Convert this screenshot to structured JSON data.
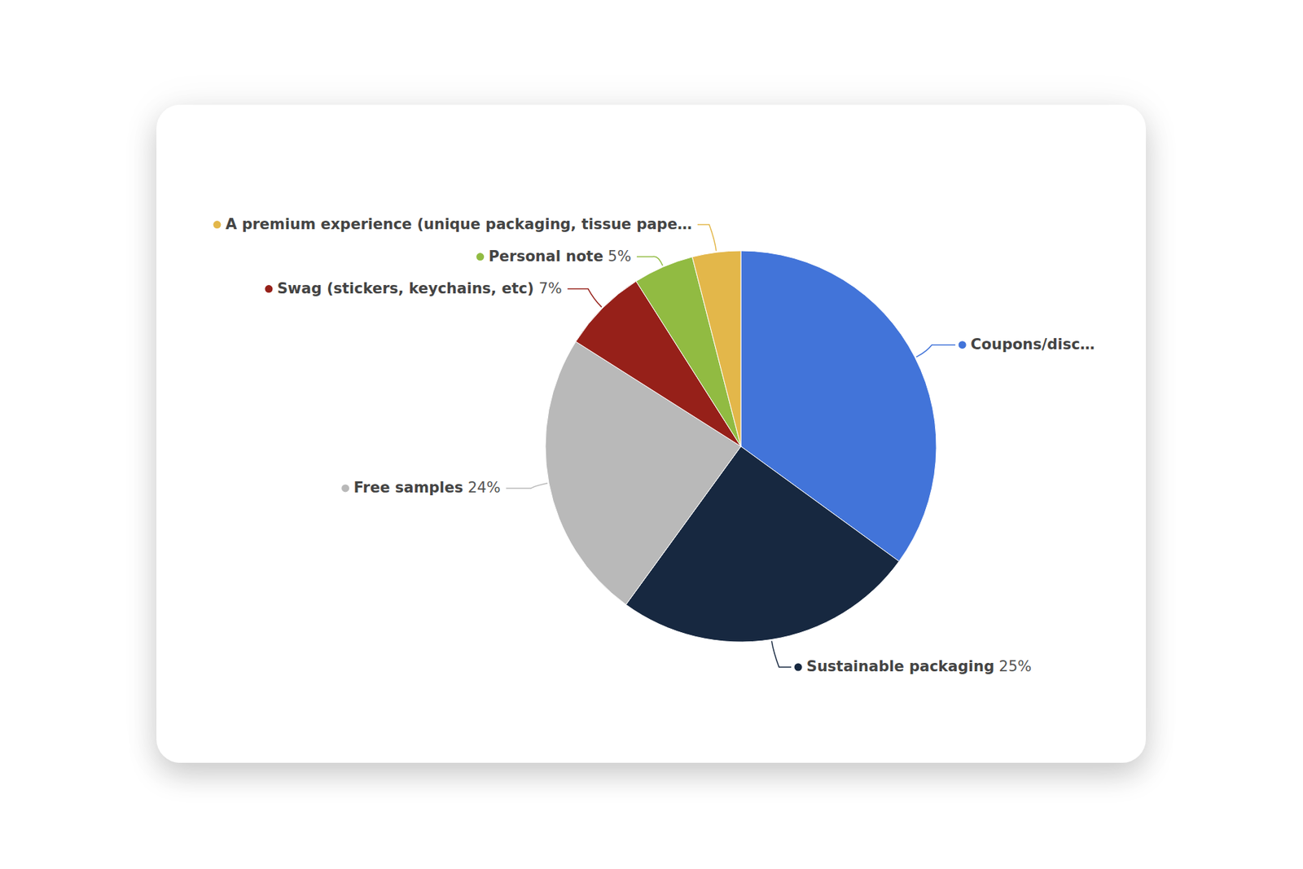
{
  "chart_data": {
    "type": "pie",
    "categories": [
      "Coupons/disc…",
      "Sustainable packaging",
      "Free samples",
      "Swag (stickers, keychains, etc)",
      "Personal note",
      "A premium experience (unique packaging, tissue pape…"
    ],
    "values": [
      35,
      25,
      24,
      7,
      5,
      4
    ],
    "value_labels": [
      null,
      "25%",
      "24%",
      "7%",
      "5%",
      null
    ],
    "colors": [
      "#4274d9",
      "#172840",
      "#b9b9b9",
      "#962019",
      "#91bb42",
      "#e3b74a"
    ],
    "data_labels": true
  }
}
